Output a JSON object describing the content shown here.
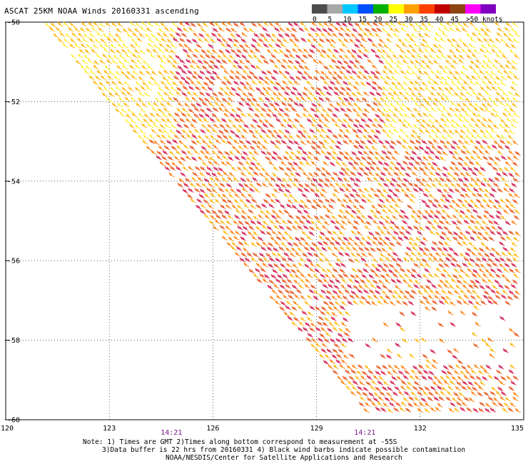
{
  "title": "ASCAT 25KM NOAA Winds 20160331 ascending",
  "colorbar": {
    "labels": [
      "0",
      "5",
      "10",
      "15",
      "20",
      "25",
      "30",
      "35",
      "40",
      "45",
      ">50 knots"
    ],
    "colors": [
      "#4d4d4d",
      "#a8a8a8",
      "#00c8ff",
      "#0050ff",
      "#00b000",
      "#ffff00",
      "#ffa000",
      "#ff4000",
      "#c00000",
      "#8b4513",
      "#ff00ff",
      "#8000c0"
    ]
  },
  "chart_data": {
    "type": "wind-barb-map",
    "xlabel": "",
    "ylabel": "",
    "xlim": [
      120,
      135
    ],
    "ylim": [
      -60,
      -50
    ],
    "x_ticks": [
      "120",
      "123",
      "126",
      "129",
      "132",
      "135"
    ],
    "y_ticks": [
      "-50",
      "-52",
      "-54",
      "-56",
      "-58",
      "-60"
    ],
    "time_labels": [
      {
        "lon": 124.8,
        "text": "14:21"
      },
      {
        "lon": 130.4,
        "text": "14:21"
      }
    ],
    "grid": "dotted",
    "swath_description": "ascending swath, winds mostly 20-40 knots"
  },
  "notes": {
    "line1": "Note: 1) Times are GMT 2)Times along bottom correspond to measurement at -55S",
    "line2": "3)Data buffer is 22 hrs from 20160331 4) Black wind barbs indicate possible contamination",
    "line3": "NOAA/NESDIS/Center for Satellite Applications and Research"
  }
}
